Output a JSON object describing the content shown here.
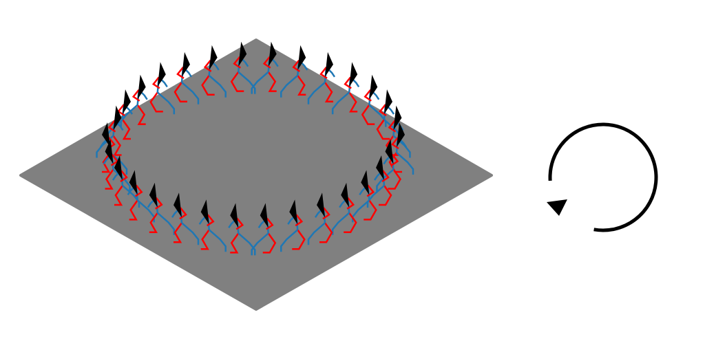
{
  "scene": {
    "background": "#ffffff",
    "plane_color": "#808080",
    "figure_count": 30,
    "left_limb_color": "#ff0000",
    "right_limb_color": "#1f77b4",
    "head_color": "#000000",
    "walking_path": "circle"
  },
  "rotation_indicator": {
    "icon": "counterclockwise-arrow-icon",
    "direction": "counterclockwise",
    "color": "#000000"
  }
}
